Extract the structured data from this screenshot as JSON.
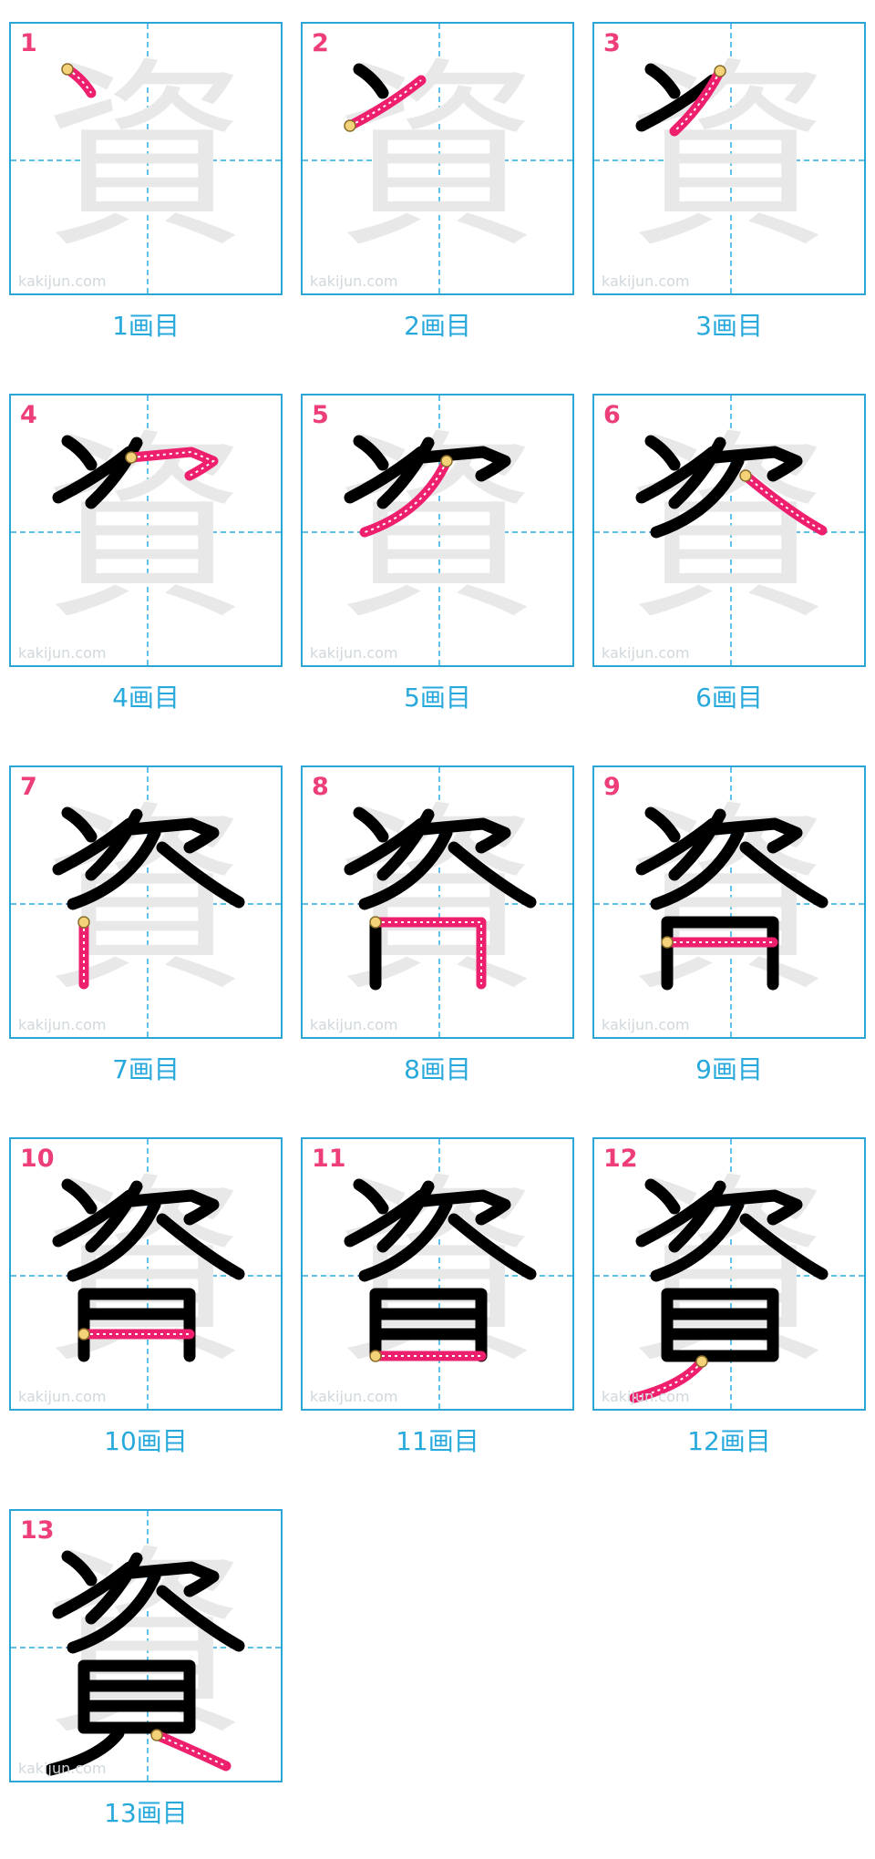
{
  "character": "資",
  "watermark": "kakijun.com",
  "caption_suffix": "画目",
  "colors": {
    "border": "#2aa7d8",
    "guide": "#5fc1e8",
    "number": "#ee3e7a",
    "caption": "#28a9dc",
    "done": "#000000",
    "current": "#ee1f6d",
    "ghost": "#e8e8e8"
  },
  "steps": [
    {
      "number": "1",
      "caption": "1画目"
    },
    {
      "number": "2",
      "caption": "2画目"
    },
    {
      "number": "3",
      "caption": "3画目"
    },
    {
      "number": "4",
      "caption": "4画目"
    },
    {
      "number": "5",
      "caption": "5画目"
    },
    {
      "number": "6",
      "caption": "6画目"
    },
    {
      "number": "7",
      "caption": "7画目"
    },
    {
      "number": "8",
      "caption": "8画目"
    },
    {
      "number": "9",
      "caption": "9画目"
    },
    {
      "number": "10",
      "caption": "10画目"
    },
    {
      "number": "11",
      "caption": "11画目"
    },
    {
      "number": "12",
      "caption": "12画目"
    },
    {
      "number": "13",
      "caption": "13画目"
    }
  ]
}
